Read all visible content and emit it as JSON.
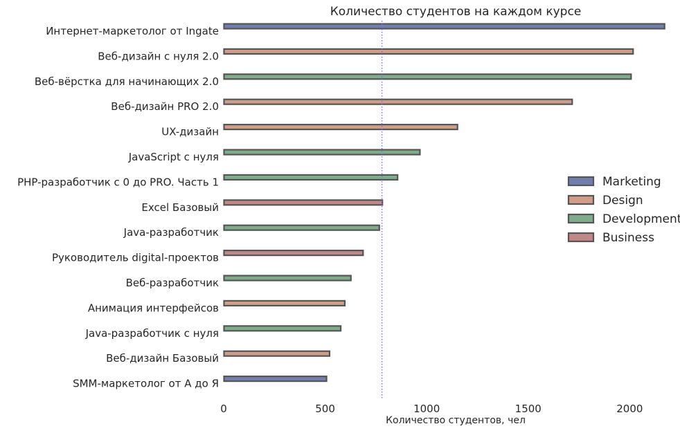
{
  "chart_data": {
    "type": "bar",
    "orientation": "horizontal",
    "title": "Количество студентов на каждом курсе",
    "xlabel": "Количество студентов, чел",
    "ylabel": "",
    "xlim": [
      0,
      2200
    ],
    "xticks": [
      0,
      500,
      1000,
      1500,
      2000
    ],
    "grid": false,
    "legend_position": "right",
    "reference_line": {
      "value": 780,
      "style": "dotted",
      "color": "#7b68ee"
    },
    "series": [
      {
        "name": "Marketing",
        "color": "#4c5f9a"
      },
      {
        "name": "Design",
        "color": "#c4866a"
      },
      {
        "name": "Development",
        "color": "#5d9a6b"
      },
      {
        "name": "Business",
        "color": "#b06a68"
      }
    ],
    "categories": [
      "Интернет-маркетолог от Ingate",
      "Веб-дизайн с нуля 2.0",
      "Веб-вёрстка для начинающих 2.0",
      "Веб-дизайн PRO 2.0",
      "UX-дизайн",
      "JavaScript с нуля",
      "PHP-разработчик с 0 до PRO. Часть 1",
      "Excel Базовый",
      "Java-разработчик",
      "Руководитель digital-проектов",
      "Веб-разработчик",
      "Анимация интерфейсов",
      "Java-разработчик с нуля",
      "Веб-дизайн Базовый",
      "SMM-маркетолог от А до Я"
    ],
    "bars": [
      {
        "category": "Интернет-маркетолог от Ingate",
        "series": "Marketing",
        "value": 2170
      },
      {
        "category": "Веб-дизайн с нуля 2.0",
        "series": "Design",
        "value": 2015
      },
      {
        "category": "Веб-вёрстка для начинающих 2.0",
        "series": "Development",
        "value": 2005
      },
      {
        "category": "Веб-дизайн PRO 2.0",
        "series": "Design",
        "value": 1715
      },
      {
        "category": "UX-дизайн",
        "series": "Design",
        "value": 1150
      },
      {
        "category": "JavaScript с нуля",
        "series": "Development",
        "value": 965
      },
      {
        "category": "PHP-разработчик с 0 до PRO. Часть 1",
        "series": "Development",
        "value": 855
      },
      {
        "category": "Excel Базовый",
        "series": "Business",
        "value": 780
      },
      {
        "category": "Java-разработчик",
        "series": "Development",
        "value": 765
      },
      {
        "category": "Руководитель digital-проектов",
        "series": "Business",
        "value": 685
      },
      {
        "category": "Веб-разработчик",
        "series": "Development",
        "value": 625
      },
      {
        "category": "Анимация интерфейсов",
        "series": "Design",
        "value": 595
      },
      {
        "category": "Java-разработчик с нуля",
        "series": "Development",
        "value": 575
      },
      {
        "category": "Веб-дизайн Базовый",
        "series": "Design",
        "value": 520
      },
      {
        "category": "SMM-маркетолог от А до Я",
        "series": "Marketing",
        "value": 505
      }
    ]
  }
}
